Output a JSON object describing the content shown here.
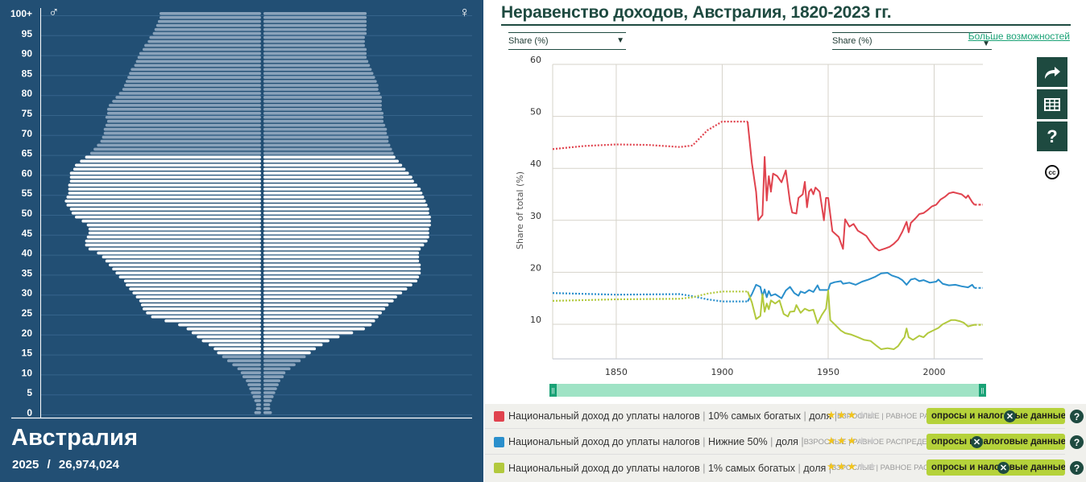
{
  "pyramid": {
    "country": "Австралия",
    "year": "2025",
    "separator": "/",
    "population": "26,974,024",
    "male_symbol": "♂",
    "female_symbol": "♀",
    "age_labels": [
      "100+",
      "95",
      "90",
      "85",
      "80",
      "75",
      "70",
      "65",
      "60",
      "55",
      "50",
      "45",
      "40",
      "35",
      "30",
      "25",
      "20",
      "15",
      "10",
      "5",
      "0"
    ],
    "colors": {
      "background": "#224f74",
      "working_age_bar": "#ffffff",
      "dependent_bar": "#8aa3bb",
      "grid": "#36648b"
    },
    "male_half_widths": [
      4,
      3,
      3,
      4,
      5,
      6,
      7,
      8,
      9,
      11,
      12,
      14,
      17,
      20,
      23,
      26,
      28,
      31,
      35,
      38,
      41,
      44,
      49,
      57,
      65,
      68,
      70,
      71,
      72,
      74,
      76,
      78,
      80,
      81,
      84,
      86,
      88,
      90,
      92,
      94,
      97,
      102,
      104,
      104,
      103,
      102,
      102,
      103,
      106,
      110,
      112,
      113,
      115,
      116,
      115,
      114,
      114,
      114,
      113,
      113,
      113,
      111,
      110,
      107,
      104,
      101,
      99,
      97,
      95,
      94,
      93,
      93,
      92,
      91,
      92,
      91,
      91,
      90,
      88,
      86,
      84,
      82,
      81,
      80,
      79,
      78,
      77,
      75,
      74,
      73,
      72,
      70,
      69,
      67,
      66,
      64,
      63,
      62,
      61,
      60,
      60
    ],
    "female_half_widths": [
      5,
      4,
      4,
      5,
      6,
      7,
      8,
      9,
      10,
      12,
      13,
      16,
      19,
      22,
      25,
      28,
      31,
      35,
      39,
      45,
      53,
      60,
      64,
      66,
      68,
      70,
      72,
      74,
      77,
      79,
      82,
      85,
      88,
      91,
      92,
      93,
      93,
      93,
      92,
      92,
      92,
      93,
      95,
      97,
      98,
      98,
      98,
      99,
      99,
      99,
      98,
      98,
      97,
      96,
      95,
      94,
      93,
      91,
      89,
      88,
      86,
      84,
      82,
      80,
      78,
      77,
      76,
      75,
      74,
      74,
      73,
      73,
      72,
      71,
      71,
      71,
      70,
      70,
      70,
      70,
      69,
      68,
      68,
      67,
      66,
      65,
      64,
      63,
      62,
      61,
      61,
      61,
      60,
      60,
      60,
      61,
      61,
      61,
      61,
      61,
      61
    ]
  },
  "chart": {
    "title": "Неравенство доходов, Австралия, 1820-2023 гг.",
    "selector_left": "Share (%)",
    "selector_right": "Share (%)",
    "more_options": "Больше возможностей",
    "tools": [
      "share-icon",
      "table-icon",
      "help-icon"
    ],
    "cc_label": "cc"
  },
  "chart_data": {
    "type": "line",
    "title": "Неравенство доходов, Австралия, 1820-2023 гг.",
    "xlabel": "",
    "ylabel": "Share of total (%)",
    "xlim": [
      1820,
      2023
    ],
    "ylim": [
      3,
      60
    ],
    "xticks": [
      1850,
      1900,
      1950,
      2000
    ],
    "yticks": [
      10,
      20,
      30,
      40,
      50,
      60
    ],
    "grid": true,
    "legend_position": "bottom",
    "series": [
      {
        "name": "Национальный доход до уплаты налогов | 10% самых богатых | доля",
        "color": "#e0434e",
        "interpolated_ranges": [
          [
            1820,
            1912
          ],
          [
            2019,
            2023
          ]
        ],
        "points": [
          [
            1820,
            43.7
          ],
          [
            1835,
            44.3
          ],
          [
            1850,
            44.6
          ],
          [
            1865,
            44.5
          ],
          [
            1880,
            44.1
          ],
          [
            1886,
            44.4
          ],
          [
            1893,
            47.3
          ],
          [
            1900,
            49.0
          ],
          [
            1912,
            49.0
          ],
          [
            1914,
            41.0
          ],
          [
            1916,
            35.5
          ],
          [
            1917,
            30.0
          ],
          [
            1919,
            31.0
          ],
          [
            1920,
            42.2
          ],
          [
            1921,
            33.8
          ],
          [
            1922,
            38.5
          ],
          [
            1923,
            35.5
          ],
          [
            1924,
            39.0
          ],
          [
            1926,
            38.5
          ],
          [
            1928,
            37.3
          ],
          [
            1930,
            39.6
          ],
          [
            1932,
            33.5
          ],
          [
            1933,
            31.5
          ],
          [
            1935,
            31.3
          ],
          [
            1936,
            34.3
          ],
          [
            1938,
            35.0
          ],
          [
            1939,
            37.4
          ],
          [
            1940,
            32.5
          ],
          [
            1941,
            35.5
          ],
          [
            1942,
            36.0
          ],
          [
            1943,
            35.0
          ],
          [
            1944,
            36.3
          ],
          [
            1946,
            35.5
          ],
          [
            1948,
            30.0
          ],
          [
            1949,
            34.3
          ],
          [
            1950,
            34.3
          ],
          [
            1952,
            27.9
          ],
          [
            1955,
            26.8
          ],
          [
            1957,
            24.5
          ],
          [
            1958,
            30.2
          ],
          [
            1960,
            28.8
          ],
          [
            1962,
            29.3
          ],
          [
            1964,
            28.0
          ],
          [
            1966,
            27.5
          ],
          [
            1968,
            27.0
          ],
          [
            1970,
            25.8
          ],
          [
            1972,
            24.8
          ],
          [
            1974,
            24.2
          ],
          [
            1977,
            24.6
          ],
          [
            1979,
            24.9
          ],
          [
            1981,
            25.5
          ],
          [
            1983,
            26.3
          ],
          [
            1985,
            27.8
          ],
          [
            1987,
            29.7
          ],
          [
            1988,
            27.7
          ],
          [
            1989,
            29.5
          ],
          [
            1991,
            30.3
          ],
          [
            1993,
            31.2
          ],
          [
            1995,
            31.4
          ],
          [
            1997,
            32.0
          ],
          [
            1999,
            32.7
          ],
          [
            2001,
            33.0
          ],
          [
            2003,
            34.0
          ],
          [
            2005,
            34.5
          ],
          [
            2007,
            35.2
          ],
          [
            2009,
            35.4
          ],
          [
            2011,
            35.2
          ],
          [
            2013,
            35.0
          ],
          [
            2015,
            34.3
          ],
          [
            2016,
            34.8
          ],
          [
            2018,
            33.5
          ],
          [
            2019,
            33.0
          ],
          [
            2023,
            33.0
          ]
        ]
      },
      {
        "name": "Национальный доход до уплаты налогов | Нижние 50% | доля",
        "color": "#2a8fcc",
        "interpolated_ranges": [
          [
            1820,
            1912
          ],
          [
            2019,
            2023
          ]
        ],
        "points": [
          [
            1820,
            16.0
          ],
          [
            1850,
            15.7
          ],
          [
            1880,
            15.8
          ],
          [
            1886,
            15.4
          ],
          [
            1893,
            14.8
          ],
          [
            1900,
            14.4
          ],
          [
            1912,
            14.4
          ],
          [
            1914,
            15.8
          ],
          [
            1916,
            17.6
          ],
          [
            1918,
            17.2
          ],
          [
            1919,
            15.4
          ],
          [
            1920,
            16.7
          ],
          [
            1921,
            15.2
          ],
          [
            1922,
            16.4
          ],
          [
            1923,
            15.5
          ],
          [
            1925,
            15.8
          ],
          [
            1928,
            15.0
          ],
          [
            1930,
            16.5
          ],
          [
            1932,
            17.2
          ],
          [
            1934,
            16.0
          ],
          [
            1936,
            15.5
          ],
          [
            1937,
            16.3
          ],
          [
            1939,
            16.0
          ],
          [
            1941,
            16.6
          ],
          [
            1943,
            16.2
          ],
          [
            1945,
            17.5
          ],
          [
            1946,
            16.6
          ],
          [
            1948,
            16.6
          ],
          [
            1950,
            16.6
          ],
          [
            1951,
            17.8
          ],
          [
            1953,
            18.1
          ],
          [
            1956,
            18.3
          ],
          [
            1957,
            17.8
          ],
          [
            1960,
            18.0
          ],
          [
            1963,
            17.6
          ],
          [
            1966,
            18.2
          ],
          [
            1969,
            18.6
          ],
          [
            1972,
            19.1
          ],
          [
            1975,
            19.8
          ],
          [
            1978,
            19.9
          ],
          [
            1980,
            19.4
          ],
          [
            1983,
            19.0
          ],
          [
            1985,
            18.5
          ],
          [
            1987,
            17.6
          ],
          [
            1989,
            18.6
          ],
          [
            1991,
            18.8
          ],
          [
            1993,
            18.3
          ],
          [
            1995,
            18.5
          ],
          [
            1998,
            18.0
          ],
          [
            2001,
            18.2
          ],
          [
            2002,
            18.6
          ],
          [
            2004,
            17.8
          ],
          [
            2007,
            17.5
          ],
          [
            2010,
            17.6
          ],
          [
            2013,
            17.3
          ],
          [
            2016,
            17.1
          ],
          [
            2018,
            17.6
          ],
          [
            2019,
            17.0
          ],
          [
            2023,
            17.0
          ]
        ]
      },
      {
        "name": "Национальный доход до уплаты налогов | 1% самых богатых | доля",
        "color": "#b2c93d",
        "interpolated_ranges": [
          [
            1820,
            1912
          ],
          [
            2019,
            2023
          ]
        ],
        "points": [
          [
            1820,
            14.5
          ],
          [
            1850,
            14.8
          ],
          [
            1880,
            14.9
          ],
          [
            1886,
            15.2
          ],
          [
            1893,
            15.9
          ],
          [
            1900,
            16.3
          ],
          [
            1912,
            16.3
          ],
          [
            1914,
            14.2
          ],
          [
            1916,
            11.0
          ],
          [
            1918,
            11.6
          ],
          [
            1919,
            15.8
          ],
          [
            1920,
            12.4
          ],
          [
            1921,
            14.0
          ],
          [
            1922,
            12.9
          ],
          [
            1923,
            14.6
          ],
          [
            1925,
            14.0
          ],
          [
            1927,
            14.6
          ],
          [
            1929,
            12.0
          ],
          [
            1931,
            11.5
          ],
          [
            1932,
            12.4
          ],
          [
            1934,
            12.5
          ],
          [
            1935,
            13.7
          ],
          [
            1937,
            12.2
          ],
          [
            1939,
            13.0
          ],
          [
            1941,
            12.6
          ],
          [
            1943,
            12.8
          ],
          [
            1945,
            10.2
          ],
          [
            1947,
            11.8
          ],
          [
            1949,
            13.0
          ],
          [
            1950,
            16.5
          ],
          [
            1951,
            10.8
          ],
          [
            1953,
            10.0
          ],
          [
            1956,
            8.8
          ],
          [
            1958,
            8.3
          ],
          [
            1961,
            8.0
          ],
          [
            1964,
            7.5
          ],
          [
            1967,
            7.0
          ],
          [
            1970,
            6.8
          ],
          [
            1973,
            5.8
          ],
          [
            1975,
            5.2
          ],
          [
            1978,
            5.4
          ],
          [
            1981,
            5.2
          ],
          [
            1983,
            5.8
          ],
          [
            1985,
            7.0
          ],
          [
            1986,
            7.5
          ],
          [
            1987,
            9.2
          ],
          [
            1988,
            7.5
          ],
          [
            1990,
            7.0
          ],
          [
            1993,
            7.8
          ],
          [
            1995,
            7.5
          ],
          [
            1997,
            8.3
          ],
          [
            1999,
            8.7
          ],
          [
            2002,
            9.3
          ],
          [
            2004,
            10.0
          ],
          [
            2006,
            10.4
          ],
          [
            2008,
            10.8
          ],
          [
            2010,
            10.8
          ],
          [
            2012,
            10.6
          ],
          [
            2014,
            10.3
          ],
          [
            2016,
            9.6
          ],
          [
            2018,
            9.8
          ],
          [
            2019,
            9.9
          ],
          [
            2023,
            9.9
          ]
        ]
      }
    ]
  },
  "slider": {
    "start_handle": "||",
    "end_handle": "||",
    "range": [
      1820,
      2023
    ]
  },
  "legend": {
    "rows": [
      {
        "color": "#e0434e",
        "indicator": "Национальный доход до уплаты налогов",
        "group": "10% самых богатых",
        "unit": "доля",
        "meta": "ВЗРОСЛЫЕ | РАВНОЕ РАСПРЕДЕЛЕНИЕ",
        "stars_on": 3,
        "stars_total": 5,
        "source": "опросы и налоговые данные",
        "remove": "✕",
        "help": "?"
      },
      {
        "color": "#2a8fcc",
        "indicator": "Национальный доход до уплаты налогов",
        "group": "Нижние 50%",
        "unit": "доля",
        "meta": "ВЗРОСЛЫЕ | РАВНОЕ РАСПРЕДЕЛЕНИЕ",
        "stars_on": 3,
        "stars_total": 5,
        "source": "опросы и налоговые данные",
        "remove": "✕",
        "help": "?"
      },
      {
        "color": "#b2c93d",
        "indicator": "Национальный доход до уплаты налогов",
        "group": "1% самых богатых",
        "unit": "доля",
        "meta": "ВЗРОСЛЫЕ | РАВНОЕ РАСПРЕДЕЛЕНИЕ",
        "stars_on": 3,
        "stars_total": 5,
        "source": "опросы и налоговые данные",
        "remove": "✕",
        "help": "?"
      }
    ]
  }
}
